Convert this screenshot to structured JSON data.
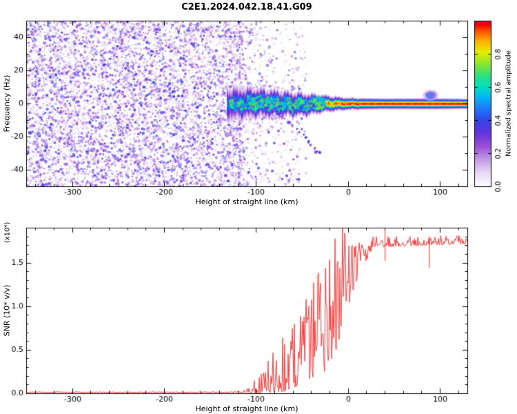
{
  "chart_data": [
    {
      "type": "heatmap",
      "panel": "spectrogram",
      "title": "C2E1.2024.042.18.41.G09",
      "xlabel": "Height of straight line (km)",
      "ylabel": "Frequency (Hz)",
      "xlim": [
        -350,
        130
      ],
      "ylim": [
        -50,
        50
      ],
      "x_ticks": [
        -300,
        -200,
        -100,
        0,
        100
      ],
      "x_tick_labels": [
        "-300",
        "-200",
        "-100",
        "0",
        "100"
      ],
      "x_minor_step": 20,
      "y_ticks": [
        -40,
        -20,
        0,
        20,
        40
      ],
      "y_tick_labels": [
        "-40",
        "-20",
        "0",
        "20",
        "40"
      ],
      "y_minor_step": 10,
      "colorbar": {
        "label": "Normalized spectral amplitude",
        "range": [
          0,
          1
        ],
        "ticks": [
          0,
          0.2,
          0.4,
          0.6,
          0.8
        ],
        "tick_labels": [
          "0.0",
          "0.2",
          "0.4",
          "0.6",
          "0.8"
        ]
      },
      "colormap_stops": [
        [
          0,
          "#ffffff"
        ],
        [
          0.08,
          "#e7d9f5"
        ],
        [
          0.16,
          "#c49be4"
        ],
        [
          0.24,
          "#9b4fd6"
        ],
        [
          0.32,
          "#6533dc"
        ],
        [
          0.4,
          "#3345e6"
        ],
        [
          0.47,
          "#1e7bff"
        ],
        [
          0.54,
          "#00b8f0"
        ],
        [
          0.6,
          "#00ddc0"
        ],
        [
          0.67,
          "#2ee07e"
        ],
        [
          0.74,
          "#8ae62e"
        ],
        [
          0.81,
          "#e6ee00"
        ],
        [
          0.88,
          "#ffae00"
        ],
        [
          0.94,
          "#ff4e00"
        ],
        [
          0.98,
          "#ee0000"
        ],
        [
          1,
          "#d4004f"
        ]
      ],
      "noise_region": {
        "x_range": [
          -350,
          -118
        ],
        "fade_to": -45,
        "dot_count": 8500,
        "value_range": [
          0.05,
          0.42
        ],
        "radius_px": [
          0.5,
          2.3
        ]
      },
      "band_plume": {
        "x_range": [
          -126,
          -70
        ],
        "count": 700,
        "sigma_hz": 9,
        "value_range": [
          0.08,
          0.3
        ]
      },
      "signal_band": {
        "keypoints": [
          [
            -132,
            0,
            9,
            0.5
          ],
          [
            -120,
            0,
            8,
            0.62
          ],
          [
            -105,
            0.5,
            7,
            0.78
          ],
          [
            -90,
            0.5,
            6.5,
            0.85
          ],
          [
            -75,
            0,
            6,
            0.9
          ],
          [
            -60,
            -0.5,
            5.5,
            0.92
          ],
          [
            -45,
            -0.5,
            5,
            0.92
          ],
          [
            -30,
            0,
            4,
            0.95
          ],
          [
            -15,
            0,
            3.2,
            0.97
          ],
          [
            0,
            0,
            2.6,
            1
          ],
          [
            40,
            0,
            2.3,
            1
          ],
          [
            90,
            0,
            2.4,
            1
          ],
          [
            130,
            0,
            2.2,
            1
          ]
        ]
      },
      "band_clusters": {
        "x_range": [
          -128,
          -25
        ],
        "count": 520,
        "spread_hz": 4.5,
        "value_range": [
          0.35,
          0.75
        ],
        "radius_px": [
          1.2,
          3.2
        ]
      },
      "scatter_arc": [
        [
          -88,
          -3
        ],
        [
          -84,
          -4
        ],
        [
          -80,
          -5
        ],
        [
          -76,
          -6
        ],
        [
          -72,
          -8
        ],
        [
          -68,
          -9
        ],
        [
          -64,
          -11
        ],
        [
          -60,
          -13
        ],
        [
          -56,
          -15
        ],
        [
          -52,
          -17
        ],
        [
          -49,
          -19
        ],
        [
          -46,
          -21
        ],
        [
          -43,
          -23
        ],
        [
          -40,
          -25
        ],
        [
          -37,
          -27
        ],
        [
          -34,
          -29
        ],
        [
          -31,
          -30
        ]
      ],
      "isolated_blob": {
        "x": 90,
        "y": 5,
        "value": 0.5
      }
    },
    {
      "type": "line",
      "panel": "snr",
      "xlabel": "Height of straight line (km)",
      "ylabel": "SNR (10* v/v)",
      "scale_note": "(x10⁴)",
      "xlim": [
        -350,
        130
      ],
      "ylim": [
        0,
        1.9
      ],
      "x_ticks": [
        -300,
        -200,
        -100,
        0,
        100
      ],
      "x_tick_labels": [
        "-300",
        "-200",
        "-100",
        "0",
        "100"
      ],
      "x_minor_step": 20,
      "y_ticks": [
        0,
        0.5,
        1,
        1.5
      ],
      "y_tick_labels": [
        "0.0",
        "0.5",
        "1.0",
        "1.5"
      ],
      "y_minor_step": 0.1,
      "line_color": "#f63b3b",
      "envelope": [
        [
          -350,
          0.012,
          0.008
        ],
        [
          -150,
          0.012,
          0.008
        ],
        [
          -115,
          0.015,
          0.012
        ],
        [
          -105,
          0.03,
          0.07
        ],
        [
          -95,
          0.06,
          0.2
        ],
        [
          -85,
          0.12,
          0.32
        ],
        [
          -75,
          0.16,
          0.42
        ],
        [
          -65,
          0.22,
          0.55
        ],
        [
          -55,
          0.3,
          0.62
        ],
        [
          -45,
          0.4,
          0.72
        ],
        [
          -35,
          0.5,
          0.85
        ],
        [
          -25,
          0.6,
          1.0
        ],
        [
          -15,
          0.8,
          1.1
        ],
        [
          -5,
          1.05,
          0.85
        ],
        [
          5,
          1.35,
          0.55
        ],
        [
          15,
          1.55,
          0.32
        ],
        [
          25,
          1.66,
          0.15
        ],
        [
          35,
          1.71,
          0.09
        ],
        [
          130,
          1.74,
          0.07
        ]
      ],
      "anomalies": [
        {
          "x": 40,
          "high": 1.93,
          "low": 1.52
        },
        {
          "x": 88,
          "high": 1.8,
          "low": 1.44
        }
      ]
    }
  ]
}
